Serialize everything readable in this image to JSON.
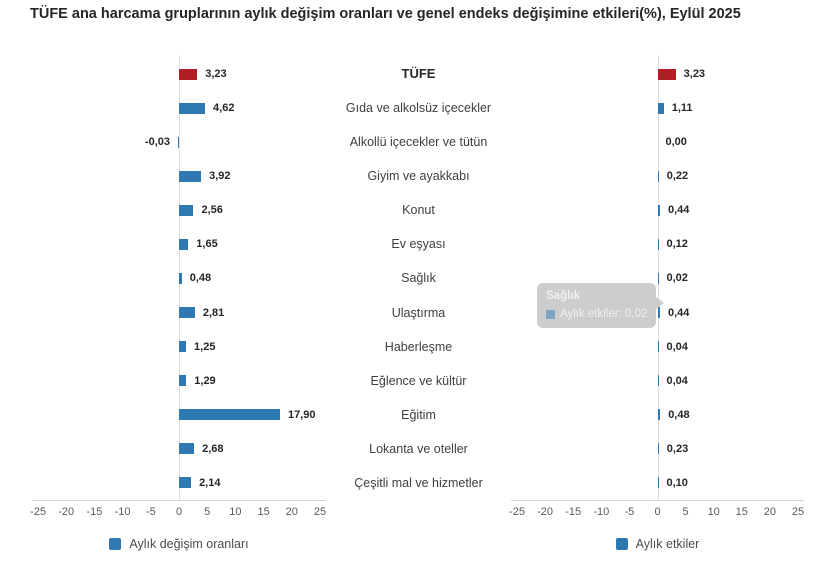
{
  "title": "TÜFE ana harcama gruplarının aylık değişim oranları ve genel endeks değişimine etkileri(%), Eylül 2025",
  "categories": [
    "TÜFE",
    "Gıda ve alkolsüz içecekler",
    "Alkollü içecekler ve tütün",
    "Giyim ve ayakkabı",
    "Konut",
    "Ev eşyası",
    "Sağlık",
    "Ulaştırma",
    "Haberleşme",
    "Eğlence ve kültür",
    "Eğitim",
    "Lokanta ve oteller",
    "Çeşitli mal ve hizmetler"
  ],
  "chart_data": [
    {
      "type": "bar",
      "name": "Aylık değişim oranları",
      "orientation": "horizontal",
      "categories": [
        "TÜFE",
        "Gıda ve alkolsüz içecekler",
        "Alkollü içecekler ve tütün",
        "Giyim ve ayakkabı",
        "Konut",
        "Ev eşyası",
        "Sağlık",
        "Ulaştırma",
        "Haberleşme",
        "Eğlence ve kültür",
        "Eğitim",
        "Lokanta ve oteller",
        "Çeşitli mal ve hizmetler"
      ],
      "values": [
        3.23,
        4.62,
        -0.03,
        3.92,
        2.56,
        1.65,
        0.48,
        2.81,
        1.25,
        1.29,
        17.9,
        2.68,
        2.14
      ],
      "labels": [
        "3,23",
        "4,62",
        "-0,03",
        "3,92",
        "2,56",
        "1,65",
        "0,48",
        "2,81",
        "1,25",
        "1,29",
        "17,90",
        "2,68",
        "2,14"
      ],
      "xlim": [
        -25,
        25
      ],
      "ticks": [
        -25,
        -20,
        -15,
        -10,
        -5,
        0,
        5,
        10,
        15,
        20,
        25
      ],
      "highlight_first_bar": true,
      "legend_position": "bottom"
    },
    {
      "type": "bar",
      "name": "Aylık etkiler",
      "orientation": "horizontal",
      "categories": [
        "TÜFE",
        "Gıda ve alkolsüz içecekler",
        "Alkollü içecekler ve tütün",
        "Giyim ve ayakkabı",
        "Konut",
        "Ev eşyası",
        "Sağlık",
        "Ulaştırma",
        "Haberleşme",
        "Eğlence ve kültür",
        "Eğitim",
        "Lokanta ve oteller",
        "Çeşitli mal ve hizmetler"
      ],
      "values": [
        3.23,
        1.11,
        0.0,
        0.22,
        0.44,
        0.12,
        0.02,
        0.44,
        0.04,
        0.04,
        0.48,
        0.23,
        0.1
      ],
      "labels": [
        "3,23",
        "1,11",
        "0,00",
        "0,22",
        "0,44",
        "0,12",
        "0,02",
        "0,44",
        "0,04",
        "0,04",
        "0,48",
        "0,23",
        "0,10"
      ],
      "xlim": [
        -25,
        25
      ],
      "ticks": [
        -25,
        -20,
        -15,
        -10,
        -5,
        0,
        5,
        10,
        15,
        20,
        25
      ],
      "highlight_first_bar": true,
      "legend_position": "bottom"
    }
  ],
  "legend": {
    "left": "Aylık değişim oranları",
    "right": "Aylık etkiler"
  },
  "tooltip": {
    "category": "Sağlık",
    "series": "Aylık etkiler",
    "value": "0,02",
    "text": "Aylık etkiler: 0,02"
  },
  "colors": {
    "blue": "#2E79B2",
    "red": "#B11F24",
    "axis_line": "#D6D6D6",
    "tick_text": "#595959",
    "title_text": "#262626"
  }
}
